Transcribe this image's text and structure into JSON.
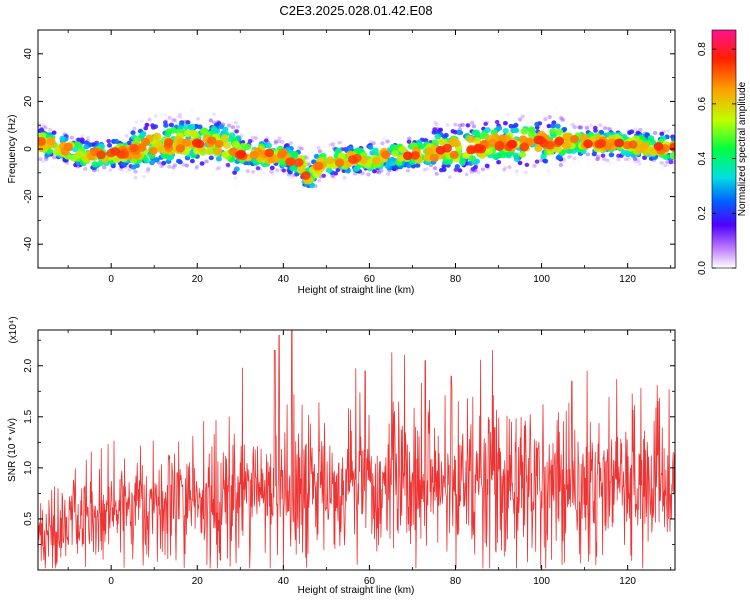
{
  "title": "C2E3.2025.028.01.42.E08",
  "chart_data": [
    {
      "type": "heatmap",
      "xlabel": "Height of straight line (km)",
      "ylabel": "Frequency (Hz)",
      "xlim": [
        -17,
        131
      ],
      "ylim": [
        -50,
        50
      ],
      "xticks": [
        0,
        20,
        40,
        60,
        80,
        100,
        120
      ],
      "yticks": [
        -40,
        -20,
        0,
        20,
        40
      ],
      "colorbar": {
        "label": "Normalized spectral amplitude",
        "range": [
          0,
          0.87
        ],
        "ticks": [
          0.0,
          0.2,
          0.4,
          0.6,
          0.8
        ]
      },
      "ridge": {
        "x": [
          -17,
          -10,
          -5,
          0,
          5,
          10,
          20,
          26,
          30,
          40,
          44,
          46,
          48,
          50,
          60,
          70,
          80,
          90,
          100,
          110,
          120,
          131
        ],
        "y": [
          3,
          0,
          -3,
          -2,
          -1,
          2,
          3,
          2,
          -2,
          -3,
          -6,
          -13,
          -7,
          -5,
          -4,
          -2,
          0,
          2,
          3,
          3,
          2,
          0
        ]
      },
      "grid": false
    },
    {
      "type": "line",
      "xlabel": "Height of straight line (km)",
      "ylabel": "SNR (10 * v/v)",
      "multiplier": "(x10⁴)",
      "xlim": [
        -17,
        131
      ],
      "ylim": [
        0,
        2.35
      ],
      "xticks": [
        0,
        20,
        40,
        60,
        80,
        100,
        120
      ],
      "yticks": [
        0.5,
        1.0,
        1.5,
        2.0
      ],
      "ytick_labels": [
        "0.5",
        "1.0",
        "1.5",
        "2.0"
      ],
      "envelope": {
        "x": [
          -17,
          -10,
          0,
          10,
          20,
          30,
          40,
          50,
          60,
          70,
          80,
          90,
          100,
          110,
          120,
          131
        ],
        "y": [
          0.3,
          0.45,
          0.55,
          0.6,
          0.65,
          0.72,
          0.78,
          0.8,
          0.8,
          0.8,
          0.85,
          0.85,
          0.85,
          0.85,
          0.82,
          0.82
        ]
      },
      "peaks": [
        {
          "x": 39,
          "y": 2.3
        },
        {
          "x": 42,
          "y": 2.35
        },
        {
          "x": 38,
          "y": 2.15
        },
        {
          "x": 79,
          "y": 1.9
        },
        {
          "x": 59,
          "y": 1.95
        },
        {
          "x": 73,
          "y": 2.05
        },
        {
          "x": 107,
          "y": 1.85
        }
      ],
      "series": [
        {
          "values_color": "#ee3333"
        }
      ],
      "grid": false
    }
  ]
}
